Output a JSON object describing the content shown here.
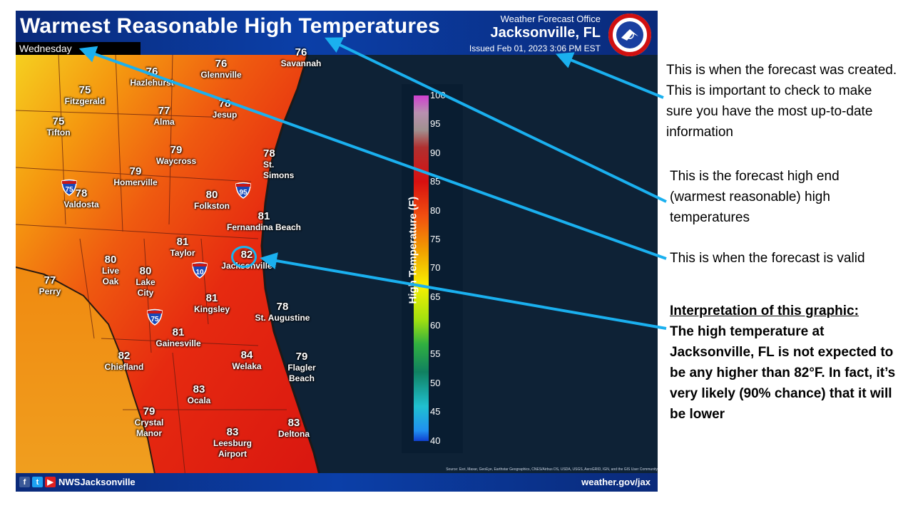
{
  "header": {
    "title": "Warmest Reasonable High Temperatures",
    "valid_day": "Wednesday",
    "office_line1": "Weather Forecast Office",
    "office_line2": "Jacksonville, FL",
    "issued": "Issued Feb 01, 2023 3:06 PM EST",
    "seal_text": "NATIONAL WEATHER SERVICE"
  },
  "cities": [
    {
      "name": "Savannah",
      "temp": "76"
    },
    {
      "name": "Glennville",
      "temp": "76"
    },
    {
      "name": "Hazlehurst",
      "temp": "76"
    },
    {
      "name": "Fitzgerald",
      "temp": "75"
    },
    {
      "name": "Tifton",
      "temp": "75"
    },
    {
      "name": "Alma",
      "temp": "77"
    },
    {
      "name": "Jesup",
      "temp": "78"
    },
    {
      "name": "Waycross",
      "temp": "79"
    },
    {
      "name": "St. Simons",
      "temp": "78"
    },
    {
      "name": "Homerville",
      "temp": "79"
    },
    {
      "name": "Valdosta",
      "temp": "78"
    },
    {
      "name": "Folkston",
      "temp": "80"
    },
    {
      "name": "Fernandina Beach",
      "temp": "81"
    },
    {
      "name": "Taylor",
      "temp": "81"
    },
    {
      "name": "Jacksonville",
      "temp": "82"
    },
    {
      "name": "Live Oak",
      "temp": "80"
    },
    {
      "name": "Lake City",
      "temp": "80"
    },
    {
      "name": "Perry",
      "temp": "77"
    },
    {
      "name": "Kingsley",
      "temp": "81"
    },
    {
      "name": "St. Augustine",
      "temp": "78"
    },
    {
      "name": "Gainesville",
      "temp": "81"
    },
    {
      "name": "Chiefland",
      "temp": "82"
    },
    {
      "name": "Welaka",
      "temp": "84"
    },
    {
      "name": "Flagler Beach",
      "temp": "79"
    },
    {
      "name": "Ocala",
      "temp": "83"
    },
    {
      "name": "Crystal Manor",
      "temp": "79"
    },
    {
      "name": "Leesburg Airport",
      "temp": "83"
    },
    {
      "name": "Deltona",
      "temp": "83"
    }
  ],
  "interstates": [
    "75",
    "95",
    "10",
    "75"
  ],
  "colorbar": {
    "label": "High Temperature (F)",
    "ticks": [
      "100",
      "95",
      "90",
      "85",
      "80",
      "75",
      "70",
      "65",
      "60",
      "55",
      "50",
      "45",
      "40"
    ]
  },
  "footer": {
    "handle": "NWSJacksonville",
    "url": "weather.gov/jax",
    "source": "Source: Esri, Maxar, GeoEye, Earthstar Geographics, CNES/Airbus DS, USDA, USGS, AeroGRID, IGN, and the GIS User Community"
  },
  "annotations": {
    "created": "This is when the forecast was created. This is important to check to make sure you have the most up-to-date information",
    "high_end": "This is the forecast high end (warmest reasonable) high temperatures",
    "valid": "This is when the forecast is valid",
    "interp_heading": "Interpretation of this graphic:",
    "interp_body": "The high temperature at Jacksonville, FL is not expected to be any higher than 82°F. In fact, it’s very likely (90% chance) that it will be lower"
  },
  "colors": {
    "arrow": "#1ab0ef",
    "header": "#0b3fa8"
  }
}
